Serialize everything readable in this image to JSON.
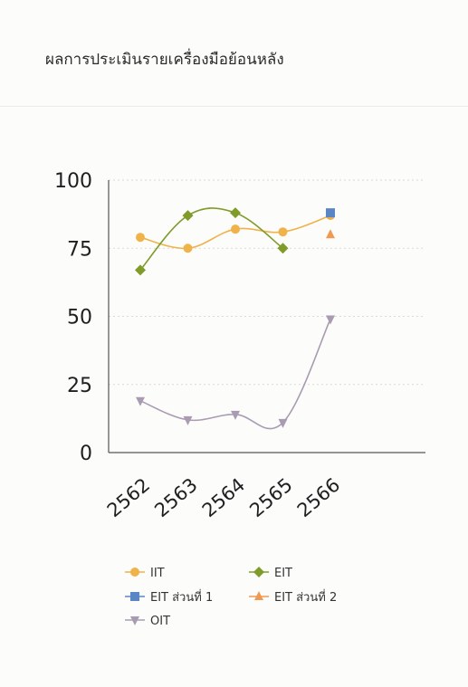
{
  "header": {
    "title": "ผลการประเมินรายเครื่องมือย้อนหลัง"
  },
  "chart_data": {
    "type": "line",
    "title": "ผลการประเมินรายเครื่องมือย้อนหลัง",
    "categories": [
      "2562",
      "2563",
      "2564",
      "2565",
      "2566"
    ],
    "ylim": [
      0,
      100
    ],
    "yticks": [
      "0",
      "25",
      "50",
      "75",
      "100"
    ],
    "grid": true,
    "legend_position": "bottom",
    "series": [
      {
        "name": "IIT",
        "values": [
          79,
          75,
          82,
          81,
          87
        ],
        "color": "#f0b24a",
        "marker": "circle"
      },
      {
        "name": "EIT",
        "values": [
          67,
          87,
          88,
          75,
          null
        ],
        "color": "#7f9c2a",
        "marker": "diamond"
      },
      {
        "name": "EIT ส่วนที่ 1",
        "values": [
          null,
          null,
          null,
          null,
          88
        ],
        "color": "#5b86c5",
        "marker": "square"
      },
      {
        "name": "EIT ส่วนที่ 2",
        "values": [
          null,
          null,
          null,
          null,
          80
        ],
        "color": "#ef9a52",
        "marker": "triangle"
      },
      {
        "name": "OIT",
        "values": [
          19,
          12,
          14,
          11,
          49
        ],
        "color": "#a99bb2",
        "marker": "triangle-down"
      }
    ]
  }
}
